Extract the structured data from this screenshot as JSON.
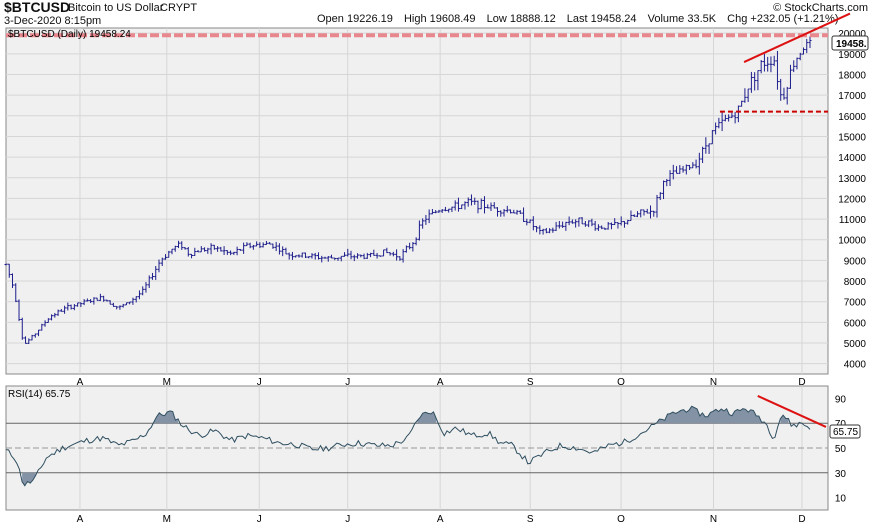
{
  "header": {
    "symbol": "$BTCUSD",
    "description": "Bitcoin to US Dollar",
    "exchange": "CRYPT",
    "date": "3-Dec-2020 8:15pm",
    "brand": "© StockCharts.com",
    "open_label": "Open",
    "open": "19226.19",
    "high_label": "High",
    "high": "19608.49",
    "low_label": "Low",
    "low": "18888.12",
    "last_label": "Last",
    "last": "19458.24",
    "volume_label": "Volume",
    "volume": "33.5K",
    "chg_label": "Chg",
    "chg": "+232.05 (+1.21%)"
  },
  "price_panel": {
    "legend": "$BTCUSD (Daily) 19458.24",
    "last_tag": "19458.",
    "resistance_color": "#e8888e",
    "trendline_color": "#dd1111",
    "bar_color": "#1e1e8c"
  },
  "rsi_panel": {
    "legend": "RSI(14) 65.75",
    "last_tag": "65.75",
    "fill_color": "#8392a5",
    "line_color": "#2f4f60"
  },
  "chart_data": [
    {
      "type": "bar",
      "title": "$BTCUSD (Daily) 19458.24",
      "x_tick_labels": [
        "A",
        "M",
        "J",
        "J",
        "A",
        "S",
        "O",
        "N",
        "D"
      ],
      "y_ticks": [
        4000,
        5000,
        6000,
        7000,
        8000,
        9000,
        10000,
        11000,
        12000,
        13000,
        14000,
        15000,
        16000,
        17000,
        18000,
        19000,
        20000
      ],
      "ylim": [
        3500,
        20250
      ],
      "grid": true,
      "resistance_level": 19900,
      "support_level": 16200,
      "trendline": [
        [
          0.768,
          18600
        ],
        [
          1.0,
          20950
        ]
      ],
      "anchors": [
        [
          0.0,
          8800
        ],
        [
          0.01,
          7600
        ],
        [
          0.022,
          4900
        ],
        [
          0.035,
          5400
        ],
        [
          0.055,
          6300
        ],
        [
          0.075,
          6700
        ],
        [
          0.1,
          7000
        ],
        [
          0.12,
          7200
        ],
        [
          0.14,
          6700
        ],
        [
          0.15,
          6900
        ],
        [
          0.17,
          7500
        ],
        [
          0.182,
          8300
        ],
        [
          0.192,
          9000
        ],
        [
          0.205,
          9500
        ],
        [
          0.217,
          9800
        ],
        [
          0.228,
          9300
        ],
        [
          0.24,
          9500
        ],
        [
          0.26,
          9600
        ],
        [
          0.28,
          9300
        ],
        [
          0.3,
          9700
        ],
        [
          0.33,
          9800
        ],
        [
          0.35,
          9300
        ],
        [
          0.38,
          9200
        ],
        [
          0.4,
          9100
        ],
        [
          0.42,
          9200
        ],
        [
          0.45,
          9200
        ],
        [
          0.47,
          9400
        ],
        [
          0.49,
          9200
        ],
        [
          0.505,
          9800
        ],
        [
          0.52,
          11000
        ],
        [
          0.54,
          11500
        ],
        [
          0.56,
          11600
        ],
        [
          0.575,
          11800
        ],
        [
          0.59,
          11700
        ],
        [
          0.61,
          11500
        ],
        [
          0.63,
          11400
        ],
        [
          0.65,
          10900
        ],
        [
          0.665,
          10300
        ],
        [
          0.68,
          10500
        ],
        [
          0.7,
          10900
        ],
        [
          0.72,
          10900
        ],
        [
          0.735,
          10600
        ],
        [
          0.76,
          10700
        ],
        [
          0.775,
          11000
        ],
        [
          0.79,
          11300
        ],
        [
          0.805,
          11400
        ],
        [
          0.82,
          13000
        ],
        [
          0.84,
          13300
        ],
        [
          0.86,
          13800
        ],
        [
          0.88,
          15300
        ],
        [
          0.895,
          15800
        ],
        [
          0.91,
          16200
        ],
        [
          0.925,
          17600
        ],
        [
          0.94,
          18500
        ],
        [
          0.955,
          18800
        ],
        [
          0.965,
          16700
        ],
        [
          0.978,
          18400
        ],
        [
          0.99,
          19300
        ],
        [
          1.0,
          19458
        ]
      ]
    },
    {
      "type": "line",
      "title": "RSI(14) 65.75",
      "y_ticks": [
        10,
        30,
        50,
        70,
        90
      ],
      "ylim": [
        0,
        100
      ],
      "overbought": 70,
      "oversold": 30,
      "centerline": 50,
      "trendline": [
        [
          0.915,
          92
        ],
        [
          1.0,
          67
        ]
      ],
      "last": 65.75,
      "anchors": [
        [
          0.0,
          48
        ],
        [
          0.012,
          42
        ],
        [
          0.022,
          20
        ],
        [
          0.035,
          24
        ],
        [
          0.05,
          42
        ],
        [
          0.07,
          50
        ],
        [
          0.1,
          56
        ],
        [
          0.12,
          58
        ],
        [
          0.14,
          52
        ],
        [
          0.16,
          56
        ],
        [
          0.175,
          62
        ],
        [
          0.188,
          76
        ],
        [
          0.205,
          79
        ],
        [
          0.22,
          68
        ],
        [
          0.24,
          60
        ],
        [
          0.26,
          64
        ],
        [
          0.28,
          56
        ],
        [
          0.3,
          60
        ],
        [
          0.32,
          58
        ],
        [
          0.34,
          54
        ],
        [
          0.36,
          53
        ],
        [
          0.38,
          49
        ],
        [
          0.4,
          50
        ],
        [
          0.42,
          53
        ],
        [
          0.44,
          54
        ],
        [
          0.46,
          52
        ],
        [
          0.48,
          52
        ],
        [
          0.5,
          58
        ],
        [
          0.515,
          76
        ],
        [
          0.53,
          80
        ],
        [
          0.545,
          62
        ],
        [
          0.56,
          66
        ],
        [
          0.58,
          60
        ],
        [
          0.6,
          62
        ],
        [
          0.615,
          54
        ],
        [
          0.63,
          52
        ],
        [
          0.65,
          38
        ],
        [
          0.67,
          46
        ],
        [
          0.69,
          52
        ],
        [
          0.71,
          50
        ],
        [
          0.73,
          46
        ],
        [
          0.75,
          52
        ],
        [
          0.77,
          55
        ],
        [
          0.79,
          62
        ],
        [
          0.81,
          70
        ],
        [
          0.83,
          78
        ],
        [
          0.85,
          82
        ],
        [
          0.87,
          76
        ],
        [
          0.89,
          82
        ],
        [
          0.905,
          78
        ],
        [
          0.92,
          82
        ],
        [
          0.935,
          76
        ],
        [
          0.945,
          70
        ],
        [
          0.955,
          58
        ],
        [
          0.965,
          78
        ],
        [
          0.978,
          68
        ],
        [
          0.99,
          70
        ],
        [
          1.0,
          66
        ]
      ]
    }
  ]
}
